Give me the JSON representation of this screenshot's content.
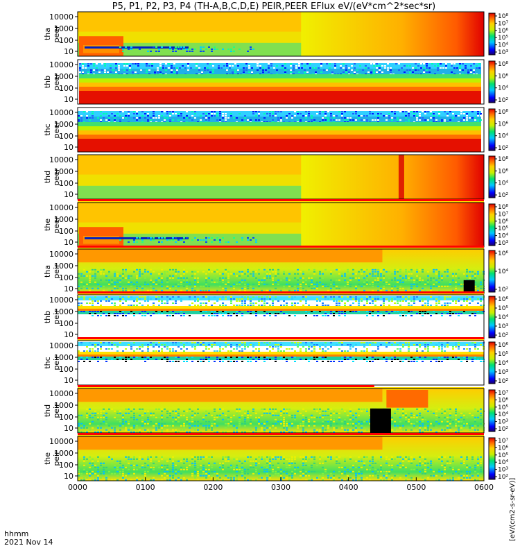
{
  "chart_data": {
    "type": "heatmap",
    "title": "P5, P1, P2, P3, P4 (TH-A,B,C,D,E) PEIR,PEER EFlux eV/(eV*cm^2*sec*sr)",
    "colorbar_label": "[eV/(cm2-s-sr-eV)]",
    "x_ticks": [
      "0000",
      "0100",
      "0200",
      "0300",
      "0400",
      "0500",
      "0600"
    ],
    "x_label_line1": "hhmm",
    "x_label_line2": "2021 Nov 14",
    "y_ticks": [
      "10000",
      "1000",
      "100",
      "10"
    ],
    "panels": [
      {
        "probe": "tha",
        "species": "peer",
        "cb_ticks": [
          "10⁸",
          "10⁷",
          "10⁶",
          "10⁵",
          "10⁴",
          "10³"
        ]
      },
      {
        "probe": "thb",
        "species": "peer",
        "cb_ticks": [
          "10⁸",
          "10⁶",
          "10⁴",
          "10²"
        ]
      },
      {
        "probe": "thc",
        "species": "peer",
        "cb_ticks": [
          "10⁸",
          "10⁶",
          "10⁴",
          "10²"
        ]
      },
      {
        "probe": "thd",
        "species": "peer",
        "cb_ticks": [
          "10⁸",
          "10⁶",
          "10⁴",
          "10²"
        ]
      },
      {
        "probe": "the",
        "species": "peer",
        "cb_ticks": [
          "10⁸",
          "10⁷",
          "10⁶",
          "10⁵",
          "10⁴",
          "10³"
        ]
      },
      {
        "probe": "tha",
        "species": "peir",
        "cb_ticks": [
          "10⁶",
          "10⁴",
          "10²"
        ]
      },
      {
        "probe": "thb",
        "species": "peir",
        "cb_ticks": [
          "10⁶",
          "10⁵",
          "10⁴",
          "10³",
          "10²"
        ]
      },
      {
        "probe": "thc",
        "species": "peir",
        "cb_ticks": [
          "10⁶",
          "10⁵",
          "10⁴",
          "10³",
          "10²"
        ]
      },
      {
        "probe": "thd",
        "species": "peir",
        "cb_ticks": [
          "10⁷",
          "10⁶",
          "10⁵",
          "10⁴",
          "10³",
          "10²"
        ]
      },
      {
        "probe": "the",
        "species": "peir",
        "cb_ticks": [
          "10⁷",
          "10⁶",
          "10⁵",
          "10⁴",
          "10³",
          "10²"
        ]
      }
    ]
  }
}
